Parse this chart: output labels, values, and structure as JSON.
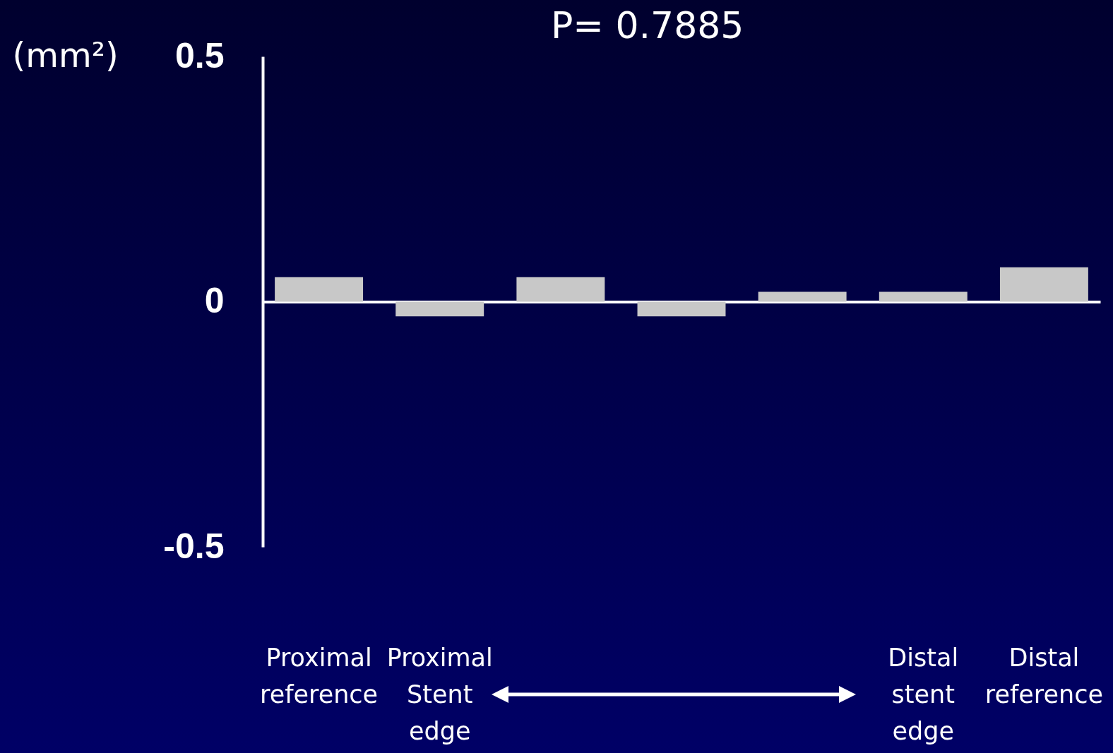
{
  "chart_data": {
    "type": "bar",
    "title": "P= 0.7885",
    "ylabel": "(mm²)",
    "categories": [
      "Proximal reference",
      "Proximal Stent edge",
      null,
      null,
      null,
      "Distal stent edge",
      "Distal reference"
    ],
    "values": [
      0.05,
      -0.03,
      0.05,
      -0.03,
      0.02,
      0.02,
      0.07
    ],
    "color": "#c8c8c8",
    "ylim": [
      -0.5,
      0.5
    ],
    "yticks": [
      -0.5,
      0,
      0.5
    ]
  }
}
